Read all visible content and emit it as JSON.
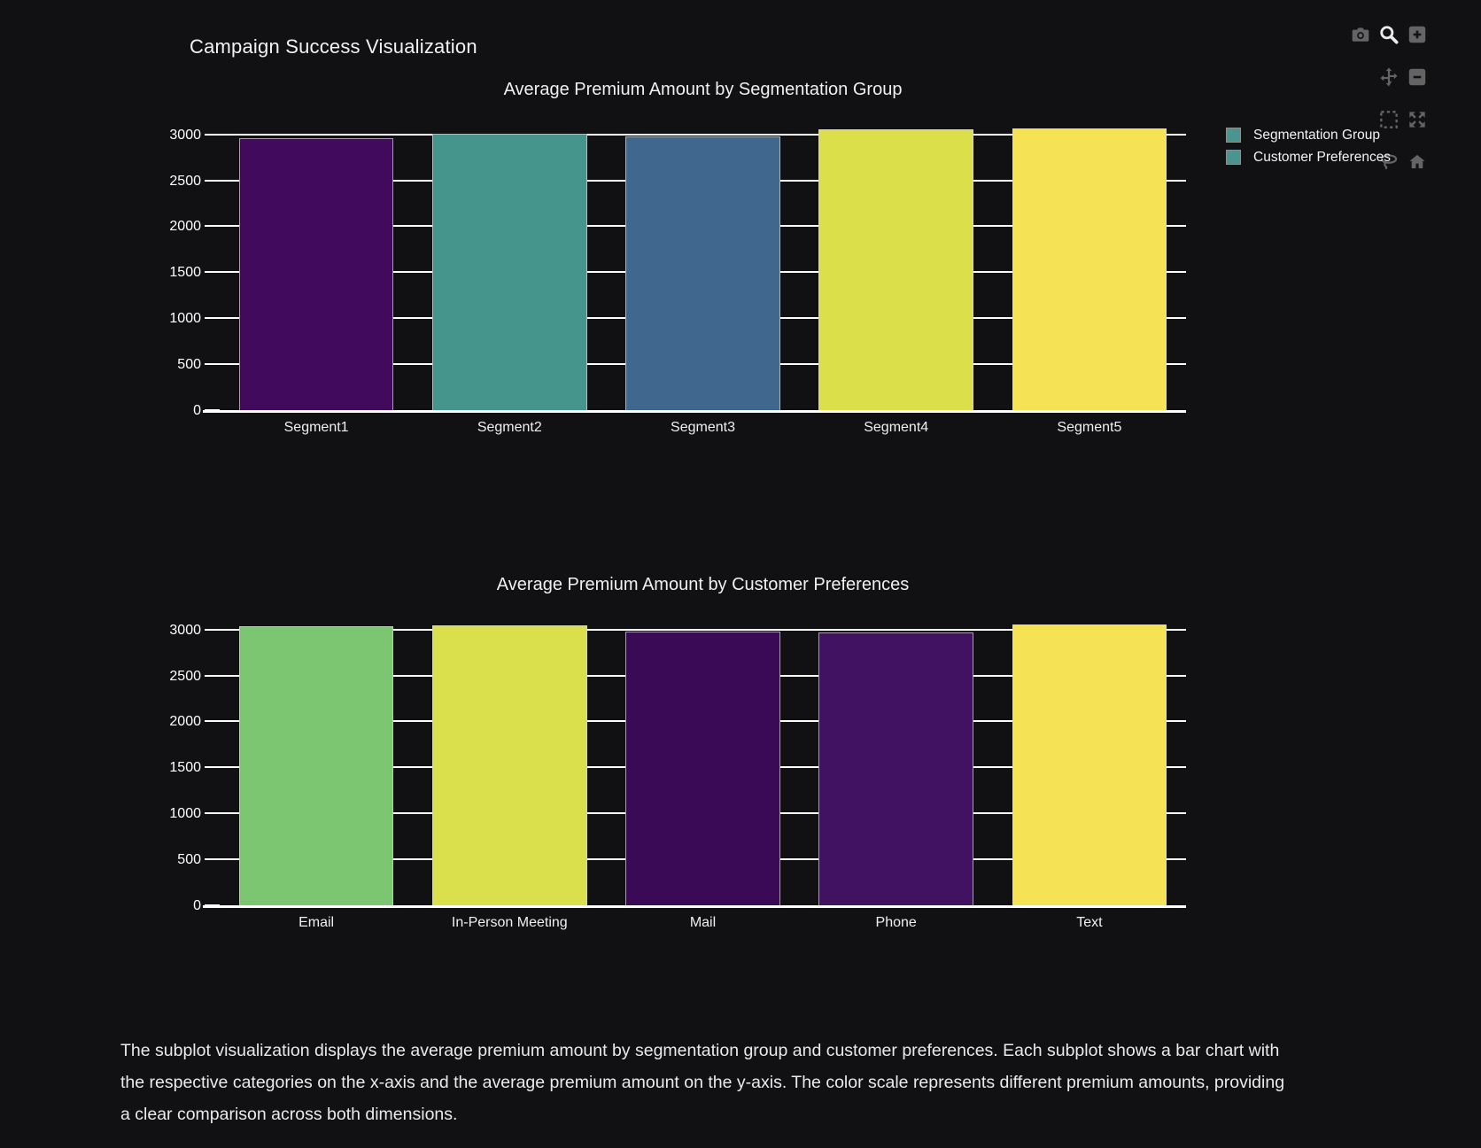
{
  "theme": {
    "background": "#111113",
    "grid_color": "#ffffff",
    "text_color": "#f0f0f0"
  },
  "header": {
    "title": "Campaign Success Visualization"
  },
  "modebar": {
    "buttons": [
      {
        "name": "camera",
        "icon": "camera-icon"
      },
      {
        "name": "zoom",
        "icon": "magnifier-icon",
        "active": true
      },
      {
        "name": "zoom-in",
        "icon": "plus-square-icon"
      },
      {
        "name": "pan",
        "icon": "move-arrows-icon"
      },
      {
        "name": "zoom-out",
        "icon": "minus-square-icon"
      },
      {
        "name": "box-select",
        "icon": "dashed-square-icon"
      },
      {
        "name": "autoscale",
        "icon": "expand-arrows-icon"
      },
      {
        "name": "lasso-select",
        "icon": "lasso-icon"
      },
      {
        "name": "reset-axes",
        "icon": "home-icon"
      }
    ]
  },
  "legend": {
    "items": [
      {
        "label": "Segmentation Group",
        "color": "#4b9590"
      },
      {
        "label": "Customer Preferences",
        "color": "#4b9590"
      }
    ]
  },
  "chart_data": [
    {
      "type": "bar",
      "title": "Average Premium Amount by Segmentation Group",
      "categories": [
        "Segment1",
        "Segment2",
        "Segment3",
        "Segment4",
        "Segment5"
      ],
      "values": [
        2965,
        3020,
        2990,
        3060,
        3070
      ],
      "bar_colors": [
        "#410a5c",
        "#46958d",
        "#40688f",
        "#dbe04a",
        "#f5e355"
      ],
      "xlabel": "",
      "ylabel": "",
      "ylim": [
        0,
        3180
      ],
      "yticks": [
        0,
        500,
        1000,
        1500,
        2000,
        2500,
        3000
      ],
      "grid": true,
      "legend_position": "top-right"
    },
    {
      "type": "bar",
      "title": "Average Premium Amount by Customer Preferences",
      "categories": [
        "Email",
        "In-Person Meeting",
        "Mail",
        "Phone",
        "Text"
      ],
      "values": [
        3045,
        3055,
        2985,
        2980,
        3065
      ],
      "bar_colors": [
        "#7cc672",
        "#d9e04b",
        "#3a0a56",
        "#411261",
        "#f5e355"
      ],
      "xlabel": "",
      "ylabel": "",
      "ylim": [
        0,
        3180
      ],
      "yticks": [
        0,
        500,
        1000,
        1500,
        2000,
        2500,
        3000
      ],
      "grid": true
    }
  ],
  "caption": {
    "lines": [
      "The subplot visualization displays the average premium amount by segmentation group and customer preferences. Each subplot shows a bar chart with",
      "the respective categories on the x-axis and the average premium amount on the y-axis. The color scale represents different premium amounts, providing",
      "a clear comparison across both dimensions."
    ]
  }
}
